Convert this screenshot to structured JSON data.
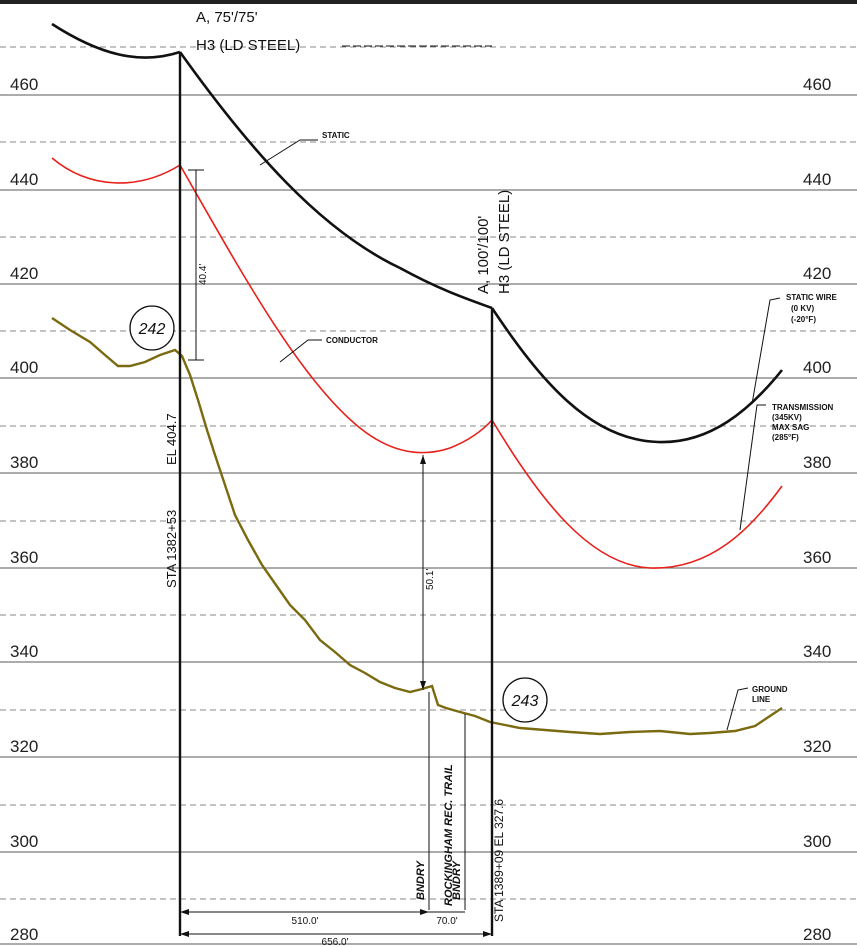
{
  "elevations_left": [
    "460",
    "440",
    "420",
    "400",
    "380",
    "360",
    "340",
    "320",
    "300",
    "280"
  ],
  "elevations_right": [
    "460",
    "440",
    "420",
    "400",
    "380",
    "360",
    "340",
    "320",
    "300",
    "280"
  ],
  "structure_left": {
    "type_line1": "A, 75'/75'",
    "type_line2": "H3 (LD STEEL)",
    "number": "242",
    "elevation": "EL 404.7",
    "station": "STA 1382+53"
  },
  "structure_right": {
    "type_line1": "A, 100'/100'",
    "type_line2": "H3 (LD STEEL)",
    "number": "243",
    "station_elevation": "STA 1389+09 EL 327.6"
  },
  "labels": {
    "static": "STATIC",
    "conductor": "CONDUCTOR",
    "static_wire": [
      "STATIC WIRE",
      "(0 KV)",
      "(-20°F)"
    ],
    "transmission": [
      "TRANSMISSION",
      "(345KV)",
      "MAX SAG",
      "(285°F)"
    ],
    "ground_line": [
      "GROUND",
      "LINE"
    ],
    "bndry1": "BNDRY",
    "rec_trail": "ROCKINGHAM REC. TRAIL",
    "bndry2": "BNDRY"
  },
  "dimensions": {
    "clearance_tower": "40.4'",
    "clearance_midspan": "50.1'",
    "span_510": "510.0'",
    "span_70": "70.0'",
    "span_656": "656.0'"
  },
  "colors": {
    "static_wire": "#111111",
    "conductor": "#e8201a",
    "ground": "#7a6a10"
  }
}
